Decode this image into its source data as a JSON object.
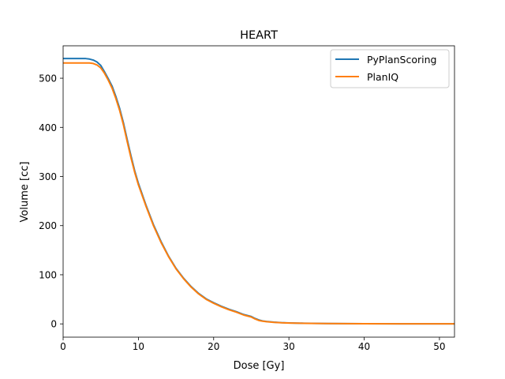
{
  "chart_data": {
    "type": "line",
    "title": "HEART",
    "xlabel": "Dose [Gy]",
    "ylabel": "Volume [cc]",
    "xlim": [
      0,
      52
    ],
    "ylim": [
      -27,
      566
    ],
    "xticks": [
      0,
      10,
      20,
      30,
      40,
      50
    ],
    "yticks": [
      0,
      100,
      200,
      300,
      400,
      500
    ],
    "grid": false,
    "legend_position": "top-right",
    "series": [
      {
        "name": "PyPlanScoring",
        "color": "#1f77b4",
        "x": [
          0,
          1,
          2,
          3,
          3.5,
          4,
          4.5,
          5,
          5.5,
          6,
          6.5,
          7,
          7.5,
          8,
          8.5,
          9,
          9.5,
          10,
          11,
          12,
          13,
          14,
          15,
          16,
          17,
          18,
          19,
          20,
          21,
          22,
          23,
          24,
          25,
          25.5,
          26,
          26.5,
          27,
          28,
          29,
          30,
          32,
          35,
          40,
          45,
          50,
          52
        ],
        "y": [
          540,
          540,
          540,
          540,
          539,
          537,
          533,
          526,
          513,
          499,
          484,
          463,
          439,
          410,
          376,
          343,
          312,
          286,
          242,
          202,
          168,
          138,
          113,
          93,
          76,
          62,
          51,
          43,
          36,
          30,
          25,
          19,
          15,
          11,
          8,
          6,
          5,
          3.5,
          2.5,
          2,
          1.3,
          0.8,
          0.4,
          0.2,
          0.1,
          0.1
        ]
      },
      {
        "name": "PlanIQ",
        "color": "#ff7f0e",
        "x": [
          0,
          1,
          2,
          3,
          3.5,
          4,
          4.5,
          5,
          5.5,
          6,
          6.5,
          7,
          7.5,
          8,
          8.5,
          9,
          9.5,
          10,
          11,
          12,
          13,
          14,
          15,
          16,
          17,
          18,
          19,
          20,
          21,
          22,
          23,
          24,
          25,
          25.5,
          26,
          26.5,
          27,
          28,
          29,
          30,
          32,
          35,
          40,
          45,
          50,
          52
        ],
        "y": [
          531,
          531,
          531,
          531,
          531,
          530,
          527,
          521,
          510,
          496,
          480,
          459,
          435,
          406,
          372,
          339,
          309,
          283,
          240,
          200,
          166,
          137,
          112,
          92,
          75,
          61,
          50,
          42,
          35,
          29,
          24,
          18,
          14,
          10,
          7,
          5.5,
          4.5,
          3.2,
          2.3,
          1.8,
          1.2,
          0.7,
          0.3,
          0.2,
          0.1,
          0.1
        ]
      }
    ]
  }
}
